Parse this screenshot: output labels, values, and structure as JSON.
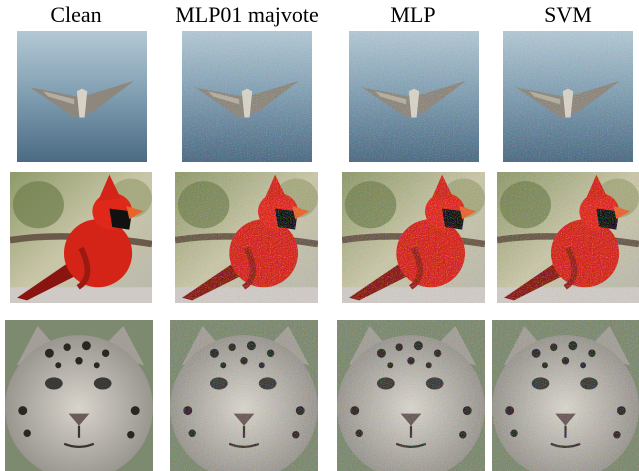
{
  "columns": [
    "Clean",
    "MLP01 majvote",
    "MLP",
    "SVM"
  ]
}
